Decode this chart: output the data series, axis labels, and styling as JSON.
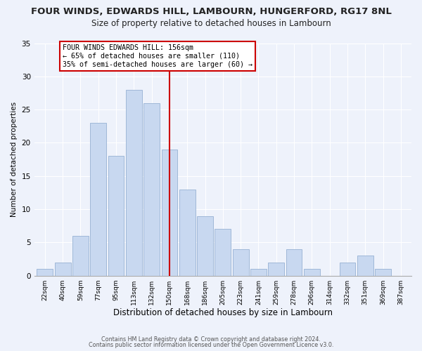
{
  "title": "FOUR WINDS, EDWARDS HILL, LAMBOURN, HUNGERFORD, RG17 8NL",
  "subtitle": "Size of property relative to detached houses in Lambourn",
  "xlabel": "Distribution of detached houses by size in Lambourn",
  "ylabel": "Number of detached properties",
  "bar_labels": [
    "22sqm",
    "40sqm",
    "59sqm",
    "77sqm",
    "95sqm",
    "113sqm",
    "132sqm",
    "150sqm",
    "168sqm",
    "186sqm",
    "205sqm",
    "223sqm",
    "241sqm",
    "259sqm",
    "278sqm",
    "296sqm",
    "314sqm",
    "332sqm",
    "351sqm",
    "369sqm",
    "387sqm"
  ],
  "bar_values": [
    1,
    2,
    6,
    23,
    18,
    28,
    26,
    19,
    13,
    9,
    7,
    4,
    1,
    2,
    4,
    1,
    0,
    2,
    3,
    1,
    0
  ],
  "bar_color": "#c8d8f0",
  "bar_edge_color": "#a0b8d8",
  "annotation_box_text": "FOUR WINDS EDWARDS HILL: 156sqm\n← 65% of detached houses are smaller (110)\n35% of semi-detached houses are larger (60) →",
  "annotation_box_color": "#ffffff",
  "annotation_box_edge_color": "#cc0000",
  "vline_color": "#cc0000",
  "ylim": [
    0,
    35
  ],
  "yticks": [
    0,
    5,
    10,
    15,
    20,
    25,
    30,
    35
  ],
  "footer_line1": "Contains HM Land Registry data © Crown copyright and database right 2024.",
  "footer_line2": "Contains public sector information licensed under the Open Government Licence v3.0.",
  "background_color": "#eef2fb",
  "title_fontsize": 9.5,
  "subtitle_fontsize": 8.5,
  "grid_color": "#ffffff",
  "vline_x_index": 7
}
